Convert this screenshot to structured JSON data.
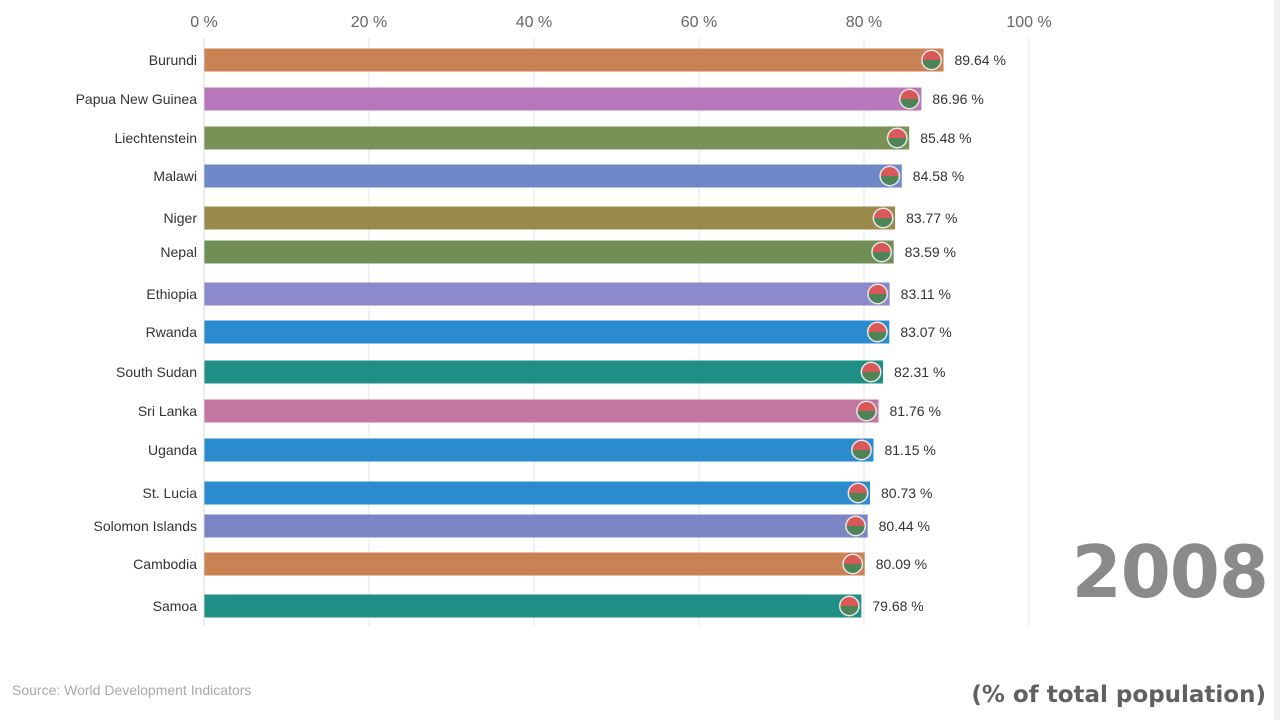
{
  "chart_data": {
    "type": "bar",
    "orientation": "horizontal",
    "categories": [
      "Burundi",
      "Papua New Guinea",
      "Liechtenstein",
      "Malawi",
      "Niger",
      "Nepal",
      "Ethiopia",
      "Rwanda",
      "South Sudan",
      "Sri Lanka",
      "Uganda",
      "St. Lucia",
      "Solomon Islands",
      "Cambodia",
      "Samoa"
    ],
    "values": [
      89.64,
      86.96,
      85.48,
      84.58,
      83.77,
      83.59,
      83.11,
      83.07,
      82.31,
      81.76,
      81.15,
      80.73,
      80.44,
      80.09,
      79.68
    ],
    "value_labels": [
      "89.64 %",
      "86.96 %",
      "85.48 %",
      "84.58 %",
      "83.77 %",
      "83.59 %",
      "83.11 %",
      "83.07 %",
      "82.31 %",
      "81.76 %",
      "81.15 %",
      "80.73 %",
      "80.44 %",
      "80.09 %",
      "79.68 %"
    ],
    "colors": [
      "#c98253",
      "#b877b8",
      "#7a9155",
      "#7088c8",
      "#9a8a4b",
      "#6f8e56",
      "#8c89cc",
      "#2a8ccf",
      "#1f8f86",
      "#c277a3",
      "#2a8ccf",
      "#2a8ccf",
      "#7d86c4",
      "#c98253",
      "#1f8f86"
    ],
    "icons": [
      "flag-burundi-icon",
      "flag-papua-new-guinea-icon",
      "flag-liechtenstein-icon",
      "flag-malawi-icon",
      "flag-niger-icon",
      "flag-nepal-icon",
      "flag-ethiopia-icon",
      "flag-rwanda-icon",
      "flag-south-sudan-icon",
      "flag-sri-lanka-icon",
      "flag-uganda-icon",
      "flag-st-lucia-icon",
      "flag-solomon-islands-icon",
      "flag-cambodia-icon",
      "flag-samoa-icon"
    ],
    "xlim": [
      0,
      100
    ],
    "xticks": [
      0,
      20,
      40,
      60,
      80,
      100
    ],
    "xtick_labels": [
      "0 %",
      "20 %",
      "40 %",
      "60 %",
      "80 %",
      "100 %"
    ],
    "grid": true,
    "year": "2008",
    "unit": "(% of total population)",
    "source": "Source: World Development Indicators"
  }
}
